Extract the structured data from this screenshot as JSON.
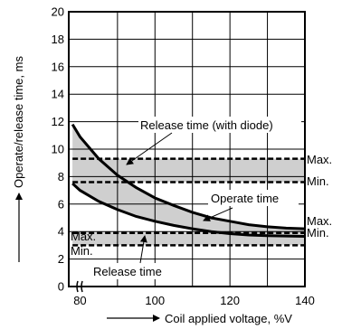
{
  "chart_data": {
    "type": "line",
    "xlabel": "Coil applied voltage, %V",
    "ylabel": "Operate/release time, ms",
    "xlim": [
      77,
      140
    ],
    "ylim": [
      0,
      20
    ],
    "x_ticks": [
      80,
      100,
      120,
      140
    ],
    "y_ticks": [
      0,
      2,
      4,
      6,
      8,
      10,
      12,
      14,
      16,
      18,
      20
    ],
    "grid": true,
    "bands": [
      {
        "name": "Operate time",
        "upper_x": [
          78,
          80,
          85,
          90,
          95,
          100,
          105,
          110,
          115,
          120,
          125,
          130,
          135,
          140
        ],
        "upper_y": [
          11.8,
          10.9,
          9.3,
          8.1,
          7.2,
          6.45,
          5.9,
          5.4,
          5.0,
          4.75,
          4.5,
          4.35,
          4.25,
          4.2
        ],
        "lower_x": [
          78,
          80,
          85,
          90,
          95,
          100,
          105,
          110,
          115,
          120,
          125,
          130,
          135,
          140
        ],
        "lower_y": [
          7.5,
          7.0,
          6.2,
          5.6,
          5.1,
          4.75,
          4.45,
          4.2,
          4.0,
          3.85,
          3.75,
          3.7,
          3.68,
          3.65
        ]
      },
      {
        "name": "Release time (with diode)",
        "max": 9.3,
        "min": 7.6
      },
      {
        "name": "Release time",
        "max": 3.9,
        "min": 3.0
      }
    ],
    "annotations": {
      "release_diode": "Release time (with diode)",
      "operate": "Operate time",
      "release": "Release time",
      "max": "Max.",
      "min": "Min."
    }
  }
}
